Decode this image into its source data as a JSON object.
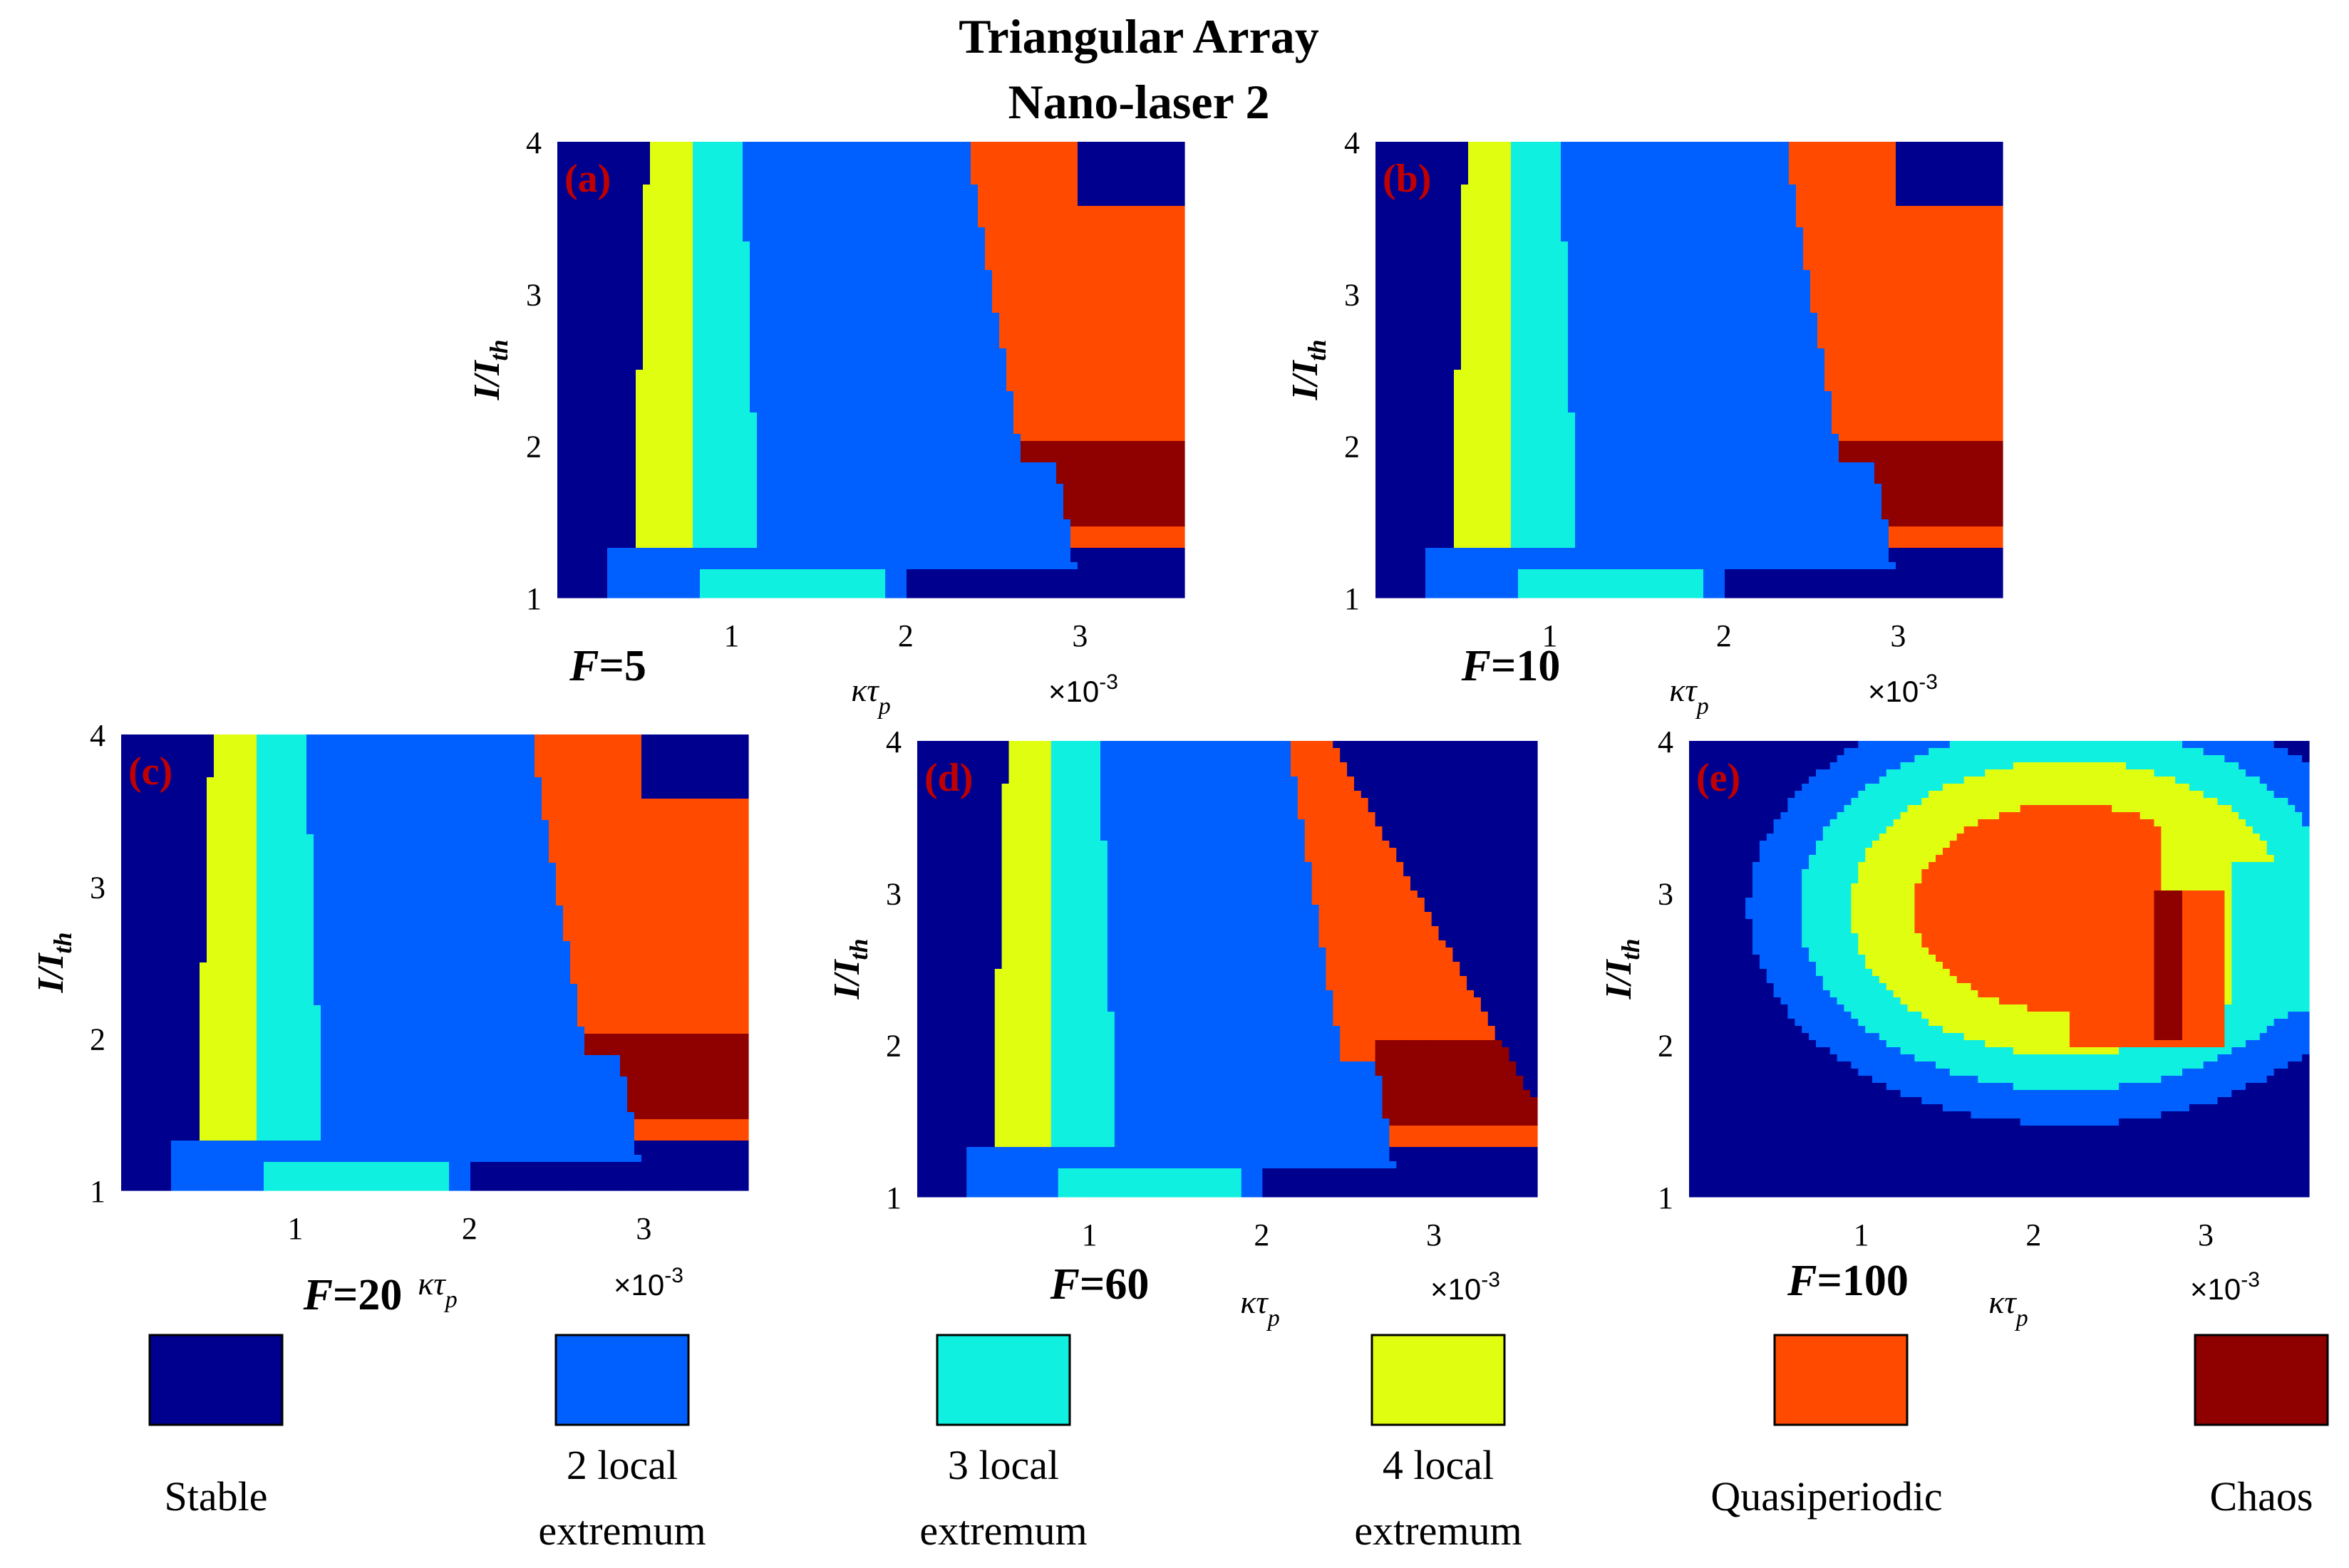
{
  "figure": {
    "title_line1": "Triangular Array",
    "title_line2": "Nano-laser 2"
  },
  "legend": [
    {
      "key": "stable",
      "label_lines": [
        "Stable"
      ],
      "color": "#00008f"
    },
    {
      "key": "two",
      "label_lines": [
        "2 local",
        "extremum"
      ],
      "color": "#0060ff"
    },
    {
      "key": "three",
      "label_lines": [
        "3 local",
        "extremum"
      ],
      "color": "#10f0e0"
    },
    {
      "key": "four",
      "label_lines": [
        "4 local",
        "extremum"
      ],
      "color": "#e0ff10"
    },
    {
      "key": "quasi",
      "label_lines": [
        "Quasiperiodic"
      ],
      "color": "#ff4a00"
    },
    {
      "key": "chaos",
      "label_lines": [
        "Chaos"
      ],
      "color": "#8f0000"
    }
  ],
  "axes": {
    "xlabel": "κτ",
    "xlabel_sub": "p",
    "ylabel": "I/I",
    "ylabel_sub": "th",
    "x_exponent": "×10",
    "x_exponent_power": "-3",
    "xlim": [
      0,
      3.6
    ],
    "ylim": [
      1,
      4
    ],
    "xticks": [
      "1",
      "2",
      "3"
    ],
    "yticks": [
      "1",
      "2",
      "3",
      "4"
    ]
  },
  "chart_data": [
    {
      "type": "heatmap",
      "panel": "(a)",
      "caption_var": "F",
      "caption_value": "=5",
      "F": 5,
      "regions": {
        "yellow": [
          0.45,
          0.75,
          1.1
        ],
        "cyan": [
          0.7,
          1.1,
          1.5
        ],
        "blue": [
          1.1,
          1.8,
          2.2
        ],
        "quasi": [
          2.3,
          3.1,
          3.15
        ],
        "chaos": [
          2.9,
          3.3,
          1.7
        ]
      }
    },
    {
      "type": "heatmap",
      "panel": "(b)",
      "caption_var": "F",
      "caption_value": "=10",
      "F": 10,
      "regions": {
        "yellow": [
          0.45,
          0.75,
          1.1
        ],
        "cyan": [
          0.7,
          1.1,
          1.5
        ],
        "blue": [
          1.1,
          1.8,
          2.2
        ],
        "quasi": [
          2.3,
          3.1,
          3.15
        ],
        "chaos": [
          3.0,
          3.4,
          1.8
        ]
      }
    },
    {
      "type": "heatmap",
      "panel": "(c)",
      "caption_var": "F",
      "caption_value": "=20",
      "F": 20,
      "regions": {
        "yellow": [
          0.45,
          0.8,
          1.1
        ],
        "cyan": [
          0.75,
          1.2,
          1.5
        ],
        "blue": [
          1.15,
          1.9,
          2.2
        ],
        "quasi": [
          2.4,
          3.2,
          3.15
        ],
        "chaos": [
          2.8,
          3.3,
          1.75
        ]
      }
    },
    {
      "type": "heatmap",
      "panel": "(d)",
      "caption_var": "F",
      "caption_value": "=60",
      "F": 60,
      "regions": {
        "yellow": [
          0.55,
          0.9,
          1.2
        ],
        "cyan": [
          0.8,
          1.3,
          1.5
        ],
        "blue": [
          1.2,
          1.9,
          2.3
        ],
        "quasi": [
          2.2,
          2.9,
          2.4
        ],
        "chaos": [
          2.7,
          3.2,
          1.9
        ]
      }
    },
    {
      "type": "heatmap",
      "panel": "(e)",
      "caption_var": "F",
      "caption_value": "=100",
      "F": 100,
      "regions": {
        "cyan": [
          0.6,
          1.4,
          1.85
        ],
        "blue": [
          1.0,
          2.0,
          2.3
        ],
        "yellow": [
          1.5,
          2.5,
          2.4
        ],
        "quasi": [
          2.0,
          2.8,
          2.6
        ],
        "chaos": [
          2.75,
          2.9,
          2.2
        ]
      }
    }
  ]
}
